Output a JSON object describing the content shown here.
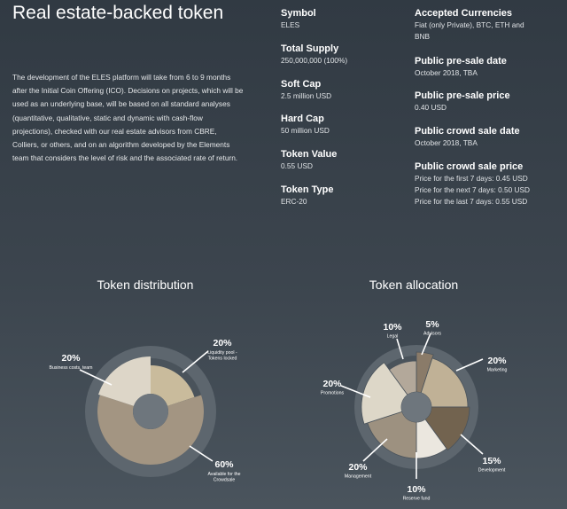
{
  "header": {
    "title": "Real estate-backed token",
    "intro": "The development of the ELES platform will take from 6 to 9 months after the Initial Coin Offering (ICO). Decisions on projects, which will be used as an underlying base, will be based on all standard analyses (quantitative, qualitative, static and dynamic with cash-flow projections), checked with our real estate advisors from CBRE, Colliers, or others, and on an algorithm developed by the Elements team that considers the level of risk and the associated rate of return."
  },
  "specs_left": [
    {
      "label": "Symbol",
      "value": "ELES"
    },
    {
      "label": "Total Supply",
      "value": "250,000,000 (100%)"
    },
    {
      "label": "Soft Cap",
      "value": "2.5 million USD"
    },
    {
      "label": "Hard Cap",
      "value": "50 million USD"
    },
    {
      "label": "Token Value",
      "value": "0.55 USD"
    },
    {
      "label": "Token Type",
      "value": "ERC-20"
    }
  ],
  "specs_right": [
    {
      "label": "Accepted Currencies",
      "lines": [
        "Fiat (only Private), BTC, ETH and",
        "BNB"
      ]
    },
    {
      "label": "Public pre-sale date",
      "lines": [
        "October 2018, TBA"
      ]
    },
    {
      "label": "Public pre-sale price",
      "lines": [
        "0.40 USD"
      ]
    },
    {
      "label": "Public crowd sale date",
      "lines": [
        "October 2018, TBA"
      ]
    },
    {
      "label": "Public crowd sale price",
      "lines": [
        "Price for the first 7 days: 0.45 USD",
        "Price for the next 7 days: 0.50 USD",
        "Price for the last 7 days: 0.55 USD"
      ]
    }
  ],
  "colors": {
    "ring_bg": "#5d666e",
    "ring_inner": "#4a535b",
    "hole": "#6e767d",
    "leader": "#ffffff"
  },
  "chart_data": [
    {
      "type": "pie",
      "title": "Token distribution",
      "slices": [
        {
          "label": "Liquidity pool - Tokens locked",
          "value": 20,
          "pct_text": "20%",
          "color": "#c9bb9c",
          "side": "right",
          "label_lines": [
            "Liquidity pool -",
            "Tokens locked"
          ]
        },
        {
          "label": "Available for the Crowdsale",
          "value": 60,
          "pct_text": "60%",
          "color": "#a39582",
          "side": "right",
          "label_lines": [
            "Available for the",
            "Crowdsale"
          ]
        },
        {
          "label": "Business costs, team",
          "value": 20,
          "pct_text": "20%",
          "color": "#ddd6c8",
          "side": "left",
          "label_lines": [
            "Business costs, team"
          ]
        }
      ]
    },
    {
      "type": "pie",
      "title": "Token allocation",
      "slices": [
        {
          "label": "Advisors",
          "value": 5,
          "pct_text": "5%",
          "color": "#8a7b69",
          "side": "right",
          "label_lines": [
            "Advisors"
          ]
        },
        {
          "label": "Marketing",
          "value": 20,
          "pct_text": "20%",
          "color": "#c0b196",
          "side": "right",
          "label_lines": [
            "Marketing"
          ]
        },
        {
          "label": "Development",
          "value": 15,
          "pct_text": "15%",
          "color": "#72634f",
          "side": "right",
          "label_lines": [
            "Development"
          ]
        },
        {
          "label": "Reserve fund",
          "value": 10,
          "pct_text": "10%",
          "color": "#ebe7df",
          "side": "bottom",
          "label_lines": [
            "Reserve fund"
          ]
        },
        {
          "label": "Management",
          "value": 20,
          "pct_text": "20%",
          "color": "#9d9180",
          "side": "left",
          "label_lines": [
            "Management"
          ]
        },
        {
          "label": "Promotions",
          "value": 20,
          "pct_text": "20%",
          "color": "#ddd7c8",
          "side": "left",
          "label_lines": [
            "Promotions"
          ]
        },
        {
          "label": "Legal",
          "value": 10,
          "pct_text": "10%",
          "color": "#b3a89a",
          "side": "left",
          "label_lines": [
            "Legal"
          ]
        }
      ]
    }
  ]
}
